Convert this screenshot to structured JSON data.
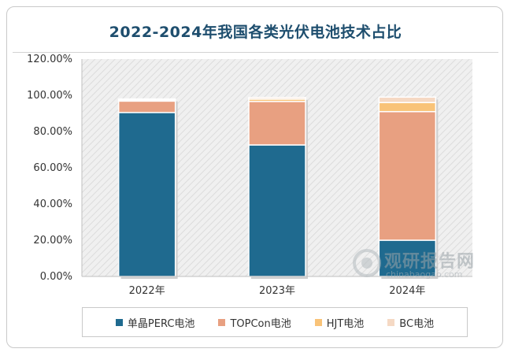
{
  "chart_data": {
    "type": "bar",
    "stacked": true,
    "title": "2022-2024年我国各类光伏电池技术占比",
    "categories": [
      "2022年",
      "2023年",
      "2024年"
    ],
    "series": [
      {
        "name": "单晶PERC电池",
        "color": "#1f6a8f",
        "values": [
          90.5,
          72.6,
          20.0
        ]
      },
      {
        "name": "TOPCon电池",
        "color": "#e8a081",
        "values": [
          6.3,
          24.0,
          71.0
        ]
      },
      {
        "name": "HJT电池",
        "color": "#f9c378",
        "values": [
          0.6,
          1.3,
          5.0
        ]
      },
      {
        "name": "BC电池",
        "color": "#f5d9c4",
        "values": [
          0.6,
          0.9,
          3.0
        ]
      }
    ],
    "ylim": [
      0,
      120
    ],
    "yticks": [
      "0.00%",
      "20.00%",
      "40.00%",
      "60.00%",
      "80.00%",
      "100.00%",
      "120.00%"
    ],
    "xlabel": "",
    "ylabel": "",
    "grid": false,
    "legend_position": "bottom"
  },
  "watermark": {
    "brand": "观研报告网",
    "url": "chinabaogao.com"
  }
}
